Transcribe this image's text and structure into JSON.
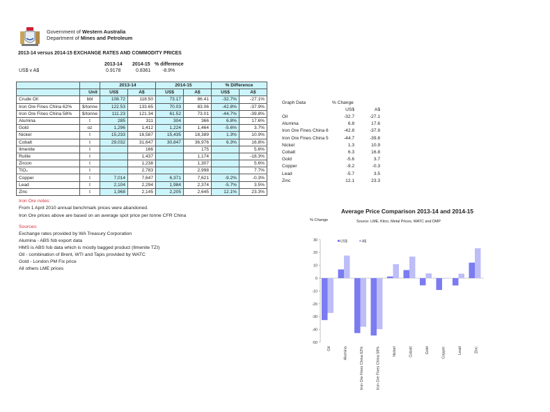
{
  "header": {
    "org_line1_pre": "Government of ",
    "org_line1_bold": "Western Australia",
    "org_line2_pre": "Department of ",
    "org_line2_bold": "Mines and Petroleum",
    "logo": "wa-coat-of-arms"
  },
  "title": "2013-14 versus 2014-15 EXCHANGE RATES AND COMMODITY PRICES",
  "exchange": {
    "headers": [
      "2013-14",
      "2014-15",
      "% difference"
    ],
    "label": "US$ v A$",
    "values": [
      "0.9178",
      "0.8361",
      "-8.9%"
    ]
  },
  "table": {
    "group_headers": [
      "2013-14",
      "2014-15",
      "% Difference"
    ],
    "sub_headers": [
      "Unit",
      "US$",
      "A$",
      "US$",
      "A$",
      "US$",
      "A$"
    ],
    "rows": [
      [
        "Crude Oil",
        "bbl",
        "108.72",
        "118.50",
        "73.17",
        "86.41",
        "-32.7%",
        "-27.1%"
      ],
      [
        "Iron Ore Fines China 62%",
        "$/tonne",
        "122.53",
        "133.65",
        "70.03",
        "83.06",
        "-42.8%",
        "-37.9%"
      ],
      [
        "Iron Ore Fines China 58%",
        "$/tonne",
        "111.23",
        "121.34",
        "61.52",
        "73.01",
        "-44.7%",
        "-39.8%"
      ],
      [
        "Alumina",
        "t",
        "285",
        "311",
        "304",
        "366",
        "6.8%",
        "17.6%"
      ],
      [
        "Gold",
        "oz",
        "1,296",
        "1,412",
        "1,224",
        "1,464",
        "-5.6%",
        "3.7%"
      ],
      [
        "Nickel",
        "t",
        "15,233",
        "16,587",
        "15,435",
        "18,389",
        "1.3%",
        "10.9%"
      ],
      [
        "Cobalt",
        "t",
        "29,032",
        "31,647",
        "30,847",
        "36,976",
        "6.3%",
        "16.8%"
      ],
      [
        "Ilmenite",
        "t",
        "",
        "166",
        "",
        "175",
        "",
        "5.6%"
      ],
      [
        "Rutile",
        "t",
        "",
        "1,437",
        "",
        "1,174",
        "",
        "-18.3%"
      ],
      [
        "Zircon",
        "t",
        "",
        "1,238",
        "",
        "1,307",
        "",
        "5.6%"
      ],
      [
        "TiO₂",
        "t",
        "",
        "2,783",
        "",
        "2,998",
        "",
        "7.7%"
      ],
      [
        "Copper",
        "t",
        "7,014",
        "7,647",
        "6,371",
        "7,621",
        "-9.2%",
        "-0.3%"
      ],
      [
        "Lead",
        "t",
        "2,104",
        "2,294",
        "1,984",
        "2,374",
        "-5.7%",
        "3.5%"
      ],
      [
        "Zinc",
        "t",
        "1,968",
        "2,145",
        "2,205",
        "2,645",
        "12.1%",
        "23.3%"
      ]
    ]
  },
  "graph_data": {
    "title": "Graph Data",
    "change_label": "% Change",
    "cols": [
      "US$",
      "A$"
    ],
    "rows": [
      [
        "Oil",
        "-32.7",
        "-27.1"
      ],
      [
        "Alumina",
        "6.8",
        "17.6"
      ],
      [
        "Iron Ore Fines China 6",
        "-42.8",
        "-37.9"
      ],
      [
        "Iron Ore Fines China 5",
        "-44.7",
        "-39.8"
      ],
      [
        "Nickel",
        "1.3",
        "10.9"
      ],
      [
        "Cobalt",
        "6.3",
        "16.8"
      ],
      [
        "Gold",
        "-5.6",
        "3.7"
      ],
      [
        "Copper",
        "-9.2",
        "-0.3"
      ],
      [
        "Lead",
        "-5.7",
        "3.5"
      ],
      [
        "Zinc",
        "12.1",
        "23.3"
      ]
    ]
  },
  "notes": {
    "iron_title": "Iron Ore notes:",
    "iron_lines": [
      "From 1 April 2010 annual benchmark prices were abandoned.",
      "Iron Ore prices above are based on an average spot price per tonne CFR China"
    ],
    "sources_title": "Sources:",
    "sources_lines": [
      "Exchange rates provided by WA Treasury Corporation",
      "Alumina  - ABS fob export data",
      "HMS is ABS fob data which is mostly bagged product (Ilmenite TZI)",
      "Oil - combination of Brent, WTI and Tapis provided by WATC",
      "Gold - London PM Fix price",
      "All others LME prices"
    ]
  },
  "chart_data": {
    "type": "bar",
    "title": "Average Price Comparison 2013-14 and 2014-15",
    "subtitle": "Source: LME, Kitco, Metal Prices, WATC and DMP",
    "ylabel": "% Change",
    "xlabel": "",
    "ylim": [
      -50,
      30
    ],
    "yticks": [
      30,
      20,
      10,
      0,
      -10,
      -20,
      -30,
      -40,
      -50
    ],
    "grid": false,
    "legend": "top-left",
    "categories": [
      "Oil",
      "Alumina",
      "Iron Ore Fines China 62%",
      "Iron Ore Fines China 58%",
      "Nickel",
      "Cobalt",
      "Gold",
      "Copper",
      "Lead",
      "Zinc"
    ],
    "series": [
      {
        "name": "US$",
        "color": "#7b7bf2",
        "values": [
          -32.7,
          6.8,
          -42.8,
          -44.7,
          1.3,
          6.3,
          -5.6,
          -9.2,
          -5.7,
          12.1
        ]
      },
      {
        "name": "A$",
        "color": "#bdbdf8",
        "values": [
          -27.1,
          17.6,
          -37.9,
          -39.8,
          10.9,
          16.8,
          3.7,
          -0.3,
          3.5,
          23.3
        ]
      }
    ]
  }
}
